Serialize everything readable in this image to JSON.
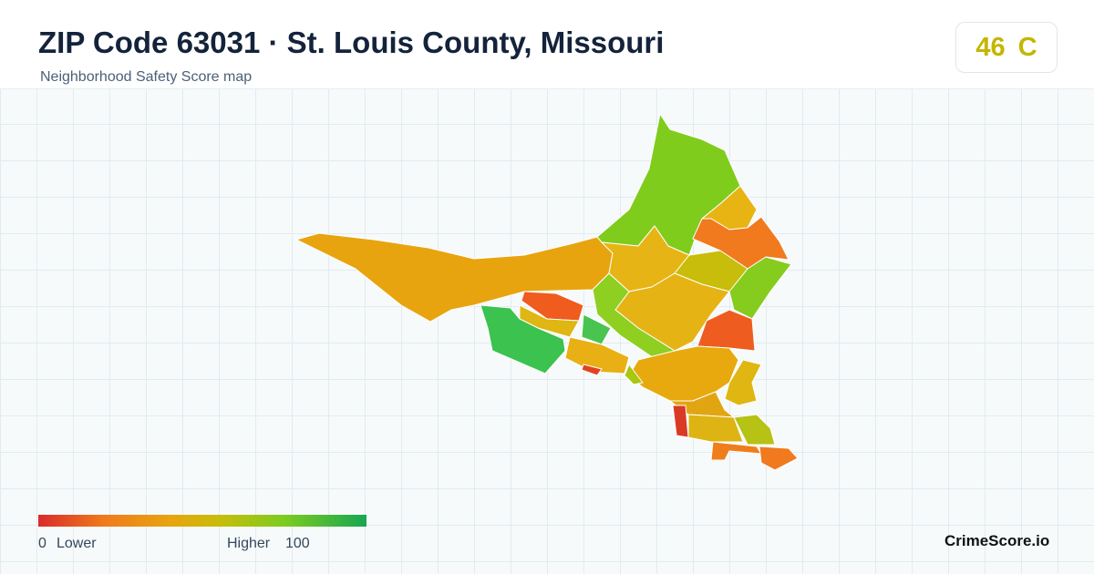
{
  "header": {
    "title": "ZIP Code 63031 · St. Louis County, Missouri",
    "subtitle": "Neighborhood Safety Score map"
  },
  "score": {
    "value": 46,
    "grade": "C"
  },
  "legend": {
    "min": 0,
    "low_label": "Lower",
    "high_label": "Higher",
    "max": 100
  },
  "brand": "CrimeScore.io"
}
